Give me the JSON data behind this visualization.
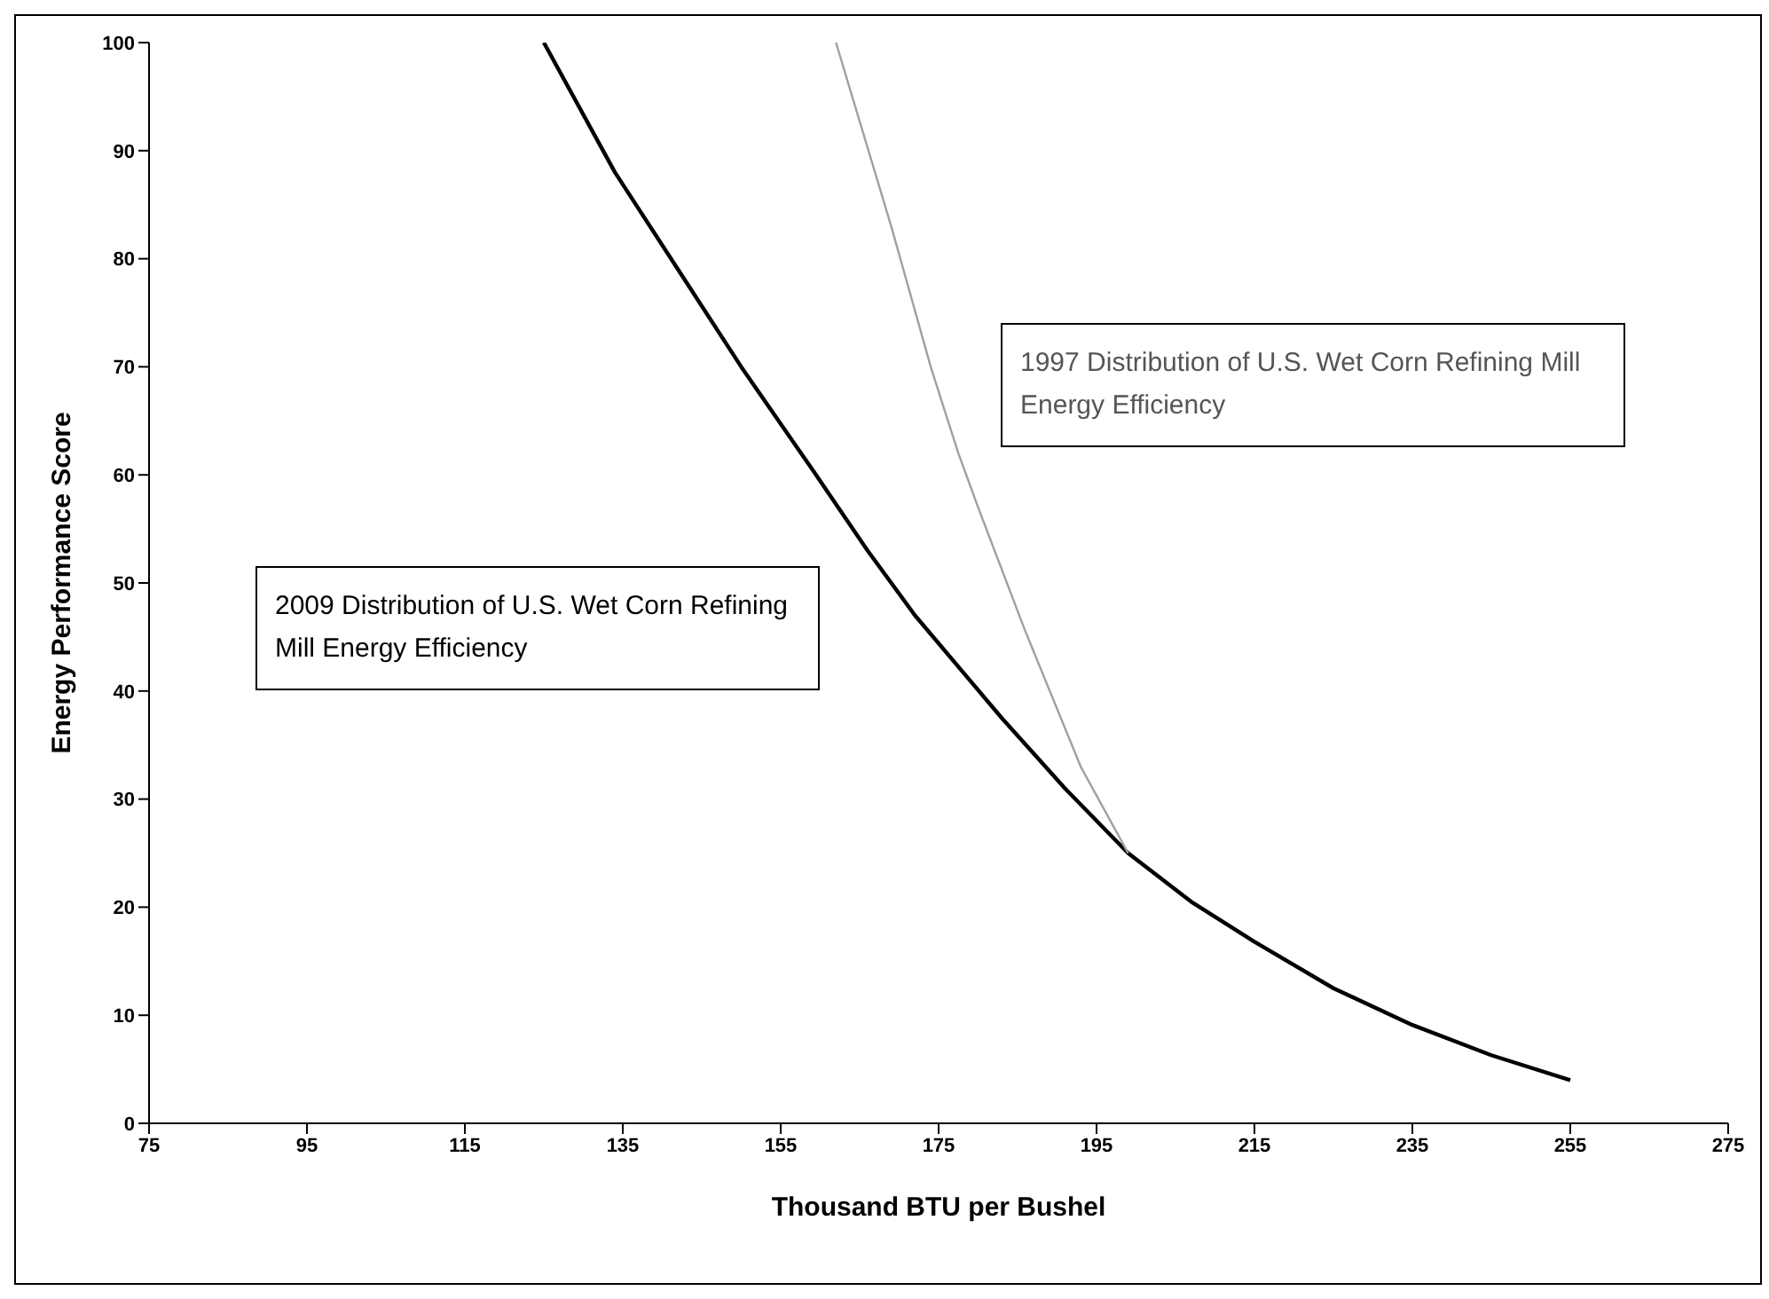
{
  "chart_data": {
    "type": "line",
    "xlabel": "Thousand BTU per Bushel",
    "ylabel": "Energy Performance Score",
    "xlim": [
      75,
      275
    ],
    "xticks": [
      75,
      95,
      115,
      135,
      155,
      175,
      195,
      215,
      235,
      255,
      275
    ],
    "ylim": [
      0,
      100
    ],
    "yticks": [
      0,
      10,
      20,
      30,
      40,
      50,
      60,
      70,
      80,
      90,
      100
    ],
    "grid": false,
    "marker": "none",
    "line_style": "solid",
    "series": [
      {
        "color": "#000000",
        "x": [
          125,
          134,
          142,
          150,
          159,
          166,
          172,
          183,
          191,
          199,
          207,
          215,
          225,
          235,
          245,
          255
        ],
        "values": [
          100,
          88,
          79,
          70,
          60.5,
          53,
          47,
          37.5,
          31,
          25,
          20.5,
          16.8,
          12.5,
          9.1,
          6.3,
          4
        ]
      },
      {
        "color": "#a0a0a0",
        "x": [
          162,
          169,
          174,
          177.5,
          180,
          186,
          193,
          199
        ],
        "values": [
          100,
          83,
          70,
          62,
          57,
          45.5,
          33,
          25
        ]
      }
    ],
    "annotations": [
      "1997 Distribution of U.S. Wet Corn Refining Mill Energy Efficiency",
      "2009 Distribution of U.S. Wet Corn Refining Mill Energy Efficiency"
    ]
  }
}
